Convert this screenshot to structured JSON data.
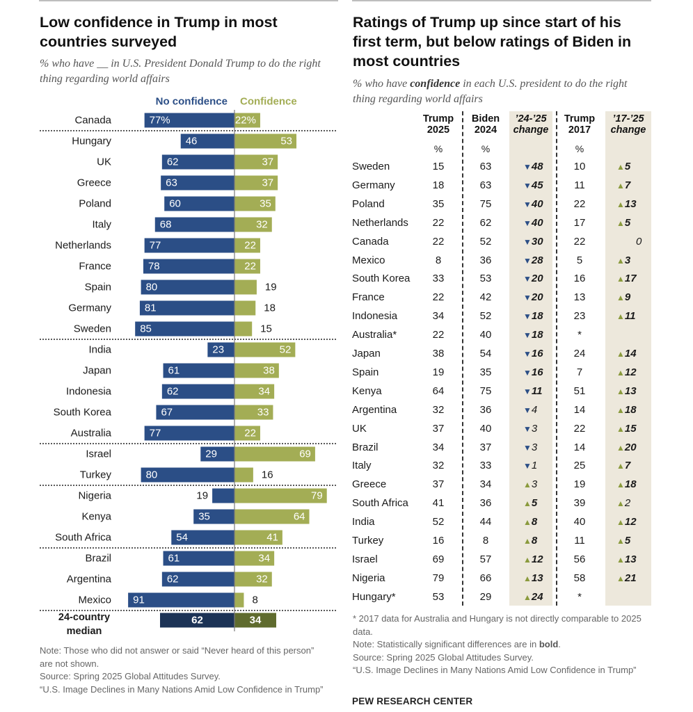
{
  "left": {
    "title": "Low confidence in Trump in most countries surveyed",
    "subtitle": "% who have __ in U.S. President Donald Trump to do the right thing regarding world affairs",
    "notes": [
      "Note: Those who did not answer or said “Never heard of this person” are not shown.",
      "Source: Spring 2025 Global Attitudes Survey.",
      "“U.S. Image Declines in Many Nations Amid Low Confidence in Trump”"
    ]
  },
  "right": {
    "title": "Ratings of Trump up since start of his first term, but below ratings of Biden in most countries",
    "subtitle_pre": "% who have ",
    "subtitle_em": "confidence",
    "subtitle_post": " in each U.S. president to do the right thing regarding world affairs",
    "columns": {
      "trump2025": "Trump 2025",
      "biden2024": "Biden 2024",
      "change2425": "’24-’25 change",
      "trump2017": "Trump 2017",
      "change1725": "’17-’25 change"
    },
    "unit": "%",
    "rows": [
      {
        "country": "Sweden",
        "trump2025": "15",
        "biden2024": "63",
        "c1_dir": "down",
        "c1": "48",
        "c1_sig": true,
        "trump2017": "10",
        "c2_dir": "up",
        "c2": "5",
        "c2_sig": true
      },
      {
        "country": "Germany",
        "trump2025": "18",
        "biden2024": "63",
        "c1_dir": "down",
        "c1": "45",
        "c1_sig": true,
        "trump2017": "11",
        "c2_dir": "up",
        "c2": "7",
        "c2_sig": true
      },
      {
        "country": "Poland",
        "trump2025": "35",
        "biden2024": "75",
        "c1_dir": "down",
        "c1": "40",
        "c1_sig": true,
        "trump2017": "22",
        "c2_dir": "up",
        "c2": "13",
        "c2_sig": true
      },
      {
        "country": "Netherlands",
        "trump2025": "22",
        "biden2024": "62",
        "c1_dir": "down",
        "c1": "40",
        "c1_sig": true,
        "trump2017": "17",
        "c2_dir": "up",
        "c2": "5",
        "c2_sig": true
      },
      {
        "country": "Canada",
        "trump2025": "22",
        "biden2024": "52",
        "c1_dir": "down",
        "c1": "30",
        "c1_sig": true,
        "trump2017": "22",
        "c2_dir": "none",
        "c2": "0",
        "c2_sig": false
      },
      {
        "country": "Mexico",
        "trump2025": "8",
        "biden2024": "36",
        "c1_dir": "down",
        "c1": "28",
        "c1_sig": true,
        "trump2017": "5",
        "c2_dir": "up",
        "c2": "3",
        "c2_sig": true
      },
      {
        "country": "South Korea",
        "trump2025": "33",
        "biden2024": "53",
        "c1_dir": "down",
        "c1": "20",
        "c1_sig": true,
        "trump2017": "16",
        "c2_dir": "up",
        "c2": "17",
        "c2_sig": true
      },
      {
        "country": "France",
        "trump2025": "22",
        "biden2024": "42",
        "c1_dir": "down",
        "c1": "20",
        "c1_sig": true,
        "trump2017": "13",
        "c2_dir": "up",
        "c2": "9",
        "c2_sig": true
      },
      {
        "country": "Indonesia",
        "trump2025": "34",
        "biden2024": "52",
        "c1_dir": "down",
        "c1": "18",
        "c1_sig": true,
        "trump2017": "23",
        "c2_dir": "up",
        "c2": "11",
        "c2_sig": true
      },
      {
        "country": "Australia*",
        "trump2025": "22",
        "biden2024": "40",
        "c1_dir": "down",
        "c1": "18",
        "c1_sig": true,
        "trump2017": "*",
        "c2_dir": "blank",
        "c2": "",
        "c2_sig": false
      },
      {
        "country": "Japan",
        "trump2025": "38",
        "biden2024": "54",
        "c1_dir": "down",
        "c1": "16",
        "c1_sig": true,
        "trump2017": "24",
        "c2_dir": "up",
        "c2": "14",
        "c2_sig": true
      },
      {
        "country": "Spain",
        "trump2025": "19",
        "biden2024": "35",
        "c1_dir": "down",
        "c1": "16",
        "c1_sig": true,
        "trump2017": "7",
        "c2_dir": "up",
        "c2": "12",
        "c2_sig": true
      },
      {
        "country": "Kenya",
        "trump2025": "64",
        "biden2024": "75",
        "c1_dir": "down",
        "c1": "11",
        "c1_sig": true,
        "trump2017": "51",
        "c2_dir": "up",
        "c2": "13",
        "c2_sig": true
      },
      {
        "country": "Argentina",
        "trump2025": "32",
        "biden2024": "36",
        "c1_dir": "down",
        "c1": "4",
        "c1_sig": false,
        "trump2017": "14",
        "c2_dir": "up",
        "c2": "18",
        "c2_sig": true
      },
      {
        "country": "UK",
        "trump2025": "37",
        "biden2024": "40",
        "c1_dir": "down",
        "c1": "3",
        "c1_sig": false,
        "trump2017": "22",
        "c2_dir": "up",
        "c2": "15",
        "c2_sig": true
      },
      {
        "country": "Brazil",
        "trump2025": "34",
        "biden2024": "37",
        "c1_dir": "down",
        "c1": "3",
        "c1_sig": false,
        "trump2017": "14",
        "c2_dir": "up",
        "c2": "20",
        "c2_sig": true
      },
      {
        "country": "Italy",
        "trump2025": "32",
        "biden2024": "33",
        "c1_dir": "down",
        "c1": "1",
        "c1_sig": false,
        "trump2017": "25",
        "c2_dir": "up",
        "c2": "7",
        "c2_sig": true
      },
      {
        "country": "Greece",
        "trump2025": "37",
        "biden2024": "34",
        "c1_dir": "up",
        "c1": "3",
        "c1_sig": false,
        "trump2017": "19",
        "c2_dir": "up",
        "c2": "18",
        "c2_sig": true
      },
      {
        "country": "South Africa",
        "trump2025": "41",
        "biden2024": "36",
        "c1_dir": "up",
        "c1": "5",
        "c1_sig": true,
        "trump2017": "39",
        "c2_dir": "up",
        "c2": "2",
        "c2_sig": false
      },
      {
        "country": "India",
        "trump2025": "52",
        "biden2024": "44",
        "c1_dir": "up",
        "c1": "8",
        "c1_sig": true,
        "trump2017": "40",
        "c2_dir": "up",
        "c2": "12",
        "c2_sig": true
      },
      {
        "country": "Turkey",
        "trump2025": "16",
        "biden2024": "8",
        "c1_dir": "up",
        "c1": "8",
        "c1_sig": true,
        "trump2017": "11",
        "c2_dir": "up",
        "c2": "5",
        "c2_sig": true
      },
      {
        "country": "Israel",
        "trump2025": "69",
        "biden2024": "57",
        "c1_dir": "up",
        "c1": "12",
        "c1_sig": true,
        "trump2017": "56",
        "c2_dir": "up",
        "c2": "13",
        "c2_sig": true
      },
      {
        "country": "Nigeria",
        "trump2025": "79",
        "biden2024": "66",
        "c1_dir": "up",
        "c1": "13",
        "c1_sig": true,
        "trump2017": "58",
        "c2_dir": "up",
        "c2": "21",
        "c2_sig": true
      },
      {
        "country": "Hungary*",
        "trump2025": "53",
        "biden2024": "29",
        "c1_dir": "up",
        "c1": "24",
        "c1_sig": true,
        "trump2017": "*",
        "c2_dir": "blank",
        "c2": "",
        "c2_sig": false
      }
    ],
    "footnote": "* 2017 data for Australia and Hungary is not directly comparable to 2025 data.",
    "note_pre": "Note: Statistically significant differences are in ",
    "note_bold": "bold",
    "note_post": ".",
    "source": "Source: Spring 2025 Global Attitudes Survey.",
    "report": "“U.S. Image Declines in Many Nations Amid Low Confidence in Trump”",
    "brand": "PEW RESEARCH CENTER"
  },
  "colors": {
    "no_confidence": "#2b4e86",
    "confidence": "#a3ad55",
    "median_no": "#1c3356",
    "median_yes": "#5f6b2e",
    "shade": "#ede8dc"
  },
  "chart_data": {
    "type": "bar",
    "orientation": "horizontal-diverging",
    "title": "Low confidence in Trump in most countries surveyed",
    "subtitle": "% who have __ in U.S. President Donald Trump to do the right thing regarding world affairs",
    "legend": [
      "No confidence",
      "Confidence"
    ],
    "categories": [
      "Canada",
      "Hungary",
      "UK",
      "Greece",
      "Poland",
      "Italy",
      "Netherlands",
      "France",
      "Spain",
      "Germany",
      "Sweden",
      "India",
      "Japan",
      "Indonesia",
      "South Korea",
      "Australia",
      "Israel",
      "Turkey",
      "Nigeria",
      "Kenya",
      "South Africa",
      "Brazil",
      "Argentina",
      "Mexico"
    ],
    "series": [
      {
        "name": "No confidence",
        "values": [
          77,
          46,
          62,
          63,
          60,
          68,
          77,
          78,
          80,
          81,
          85,
          23,
          61,
          62,
          67,
          77,
          29,
          80,
          19,
          35,
          54,
          61,
          62,
          91
        ]
      },
      {
        "name": "Confidence",
        "values": [
          22,
          53,
          37,
          37,
          35,
          32,
          22,
          22,
          19,
          18,
          15,
          52,
          38,
          34,
          33,
          22,
          69,
          16,
          79,
          64,
          41,
          34,
          32,
          8
        ]
      }
    ],
    "first_row_suffix": "%",
    "group_breaks_after": [
      "Canada",
      "Sweden",
      "Australia",
      "Turkey",
      "South Africa",
      "Mexico"
    ],
    "median": {
      "label_line1": "24-country",
      "label_line2": "median",
      "no_confidence": 62,
      "confidence": 34
    },
    "xlim": [
      0,
      100
    ]
  }
}
